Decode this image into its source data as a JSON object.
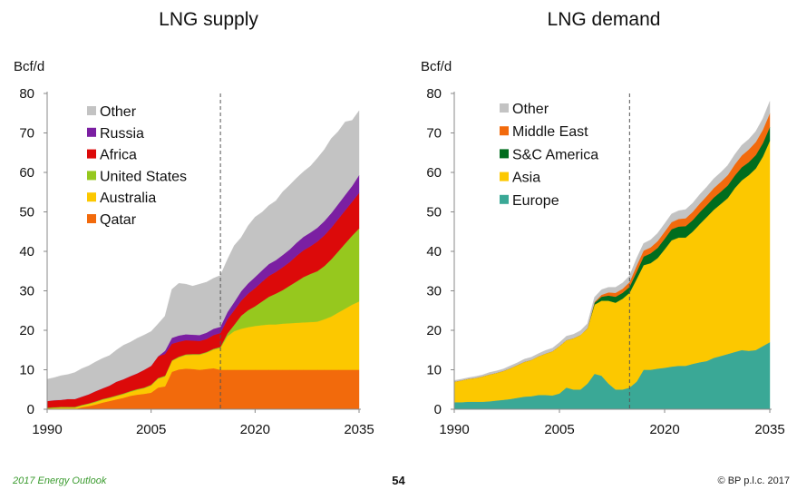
{
  "footer": {
    "left": "2017 Energy Outlook",
    "page_number": "54",
    "right": "© BP p.l.c. 2017"
  },
  "chart_data": [
    {
      "type": "area",
      "title": "LNG supply",
      "ylabel": "Bcf/d",
      "xlabel": "",
      "ylim": [
        0,
        80
      ],
      "yticks": [
        0,
        10,
        20,
        30,
        40,
        50,
        60,
        70,
        80
      ],
      "xticks": [
        "1990",
        "2005",
        "2020",
        "2035"
      ],
      "xlim": [
        1990,
        2035
      ],
      "divider_year": 2015,
      "legend_position": "top-left",
      "legend_order": [
        "Other",
        "Russia",
        "Africa",
        "United States",
        "Australia",
        "Qatar"
      ],
      "x": [
        1990,
        1991,
        1992,
        1993,
        1994,
        1995,
        1996,
        1997,
        1998,
        1999,
        2000,
        2001,
        2002,
        2003,
        2004,
        2005,
        2006,
        2007,
        2008,
        2009,
        2010,
        2011,
        2012,
        2013,
        2014,
        2015,
        2016,
        2017,
        2018,
        2019,
        2020,
        2021,
        2022,
        2023,
        2024,
        2025,
        2026,
        2027,
        2028,
        2029,
        2030,
        2031,
        2032,
        2033,
        2034,
        2035
      ],
      "series": [
        {
          "name": "Qatar",
          "color": "#f26a0c",
          "values": [
            0,
            0,
            0,
            0,
            0,
            0.5,
            0.8,
            1.2,
            1.7,
            2.1,
            2.5,
            2.9,
            3.4,
            3.7,
            3.9,
            4.2,
            5.5,
            5.8,
            9.5,
            10.1,
            10.3,
            10.2,
            10.0,
            10.2,
            10.4,
            10.0,
            10,
            10,
            10,
            10,
            10,
            10,
            10,
            10,
            10,
            10,
            10,
            10,
            10,
            10,
            10,
            10,
            10,
            10,
            10,
            10
          ]
        },
        {
          "name": "Australia",
          "color": "#fcc800",
          "values": [
            0.2,
            0.3,
            0.4,
            0.4,
            0.4,
            0.4,
            0.5,
            0.6,
            0.7,
            0.7,
            0.8,
            0.9,
            1.0,
            1.2,
            1.4,
            1.8,
            2.2,
            2.5,
            2.7,
            3.0,
            3.4,
            3.6,
            3.8,
            4.1,
            4.7,
            5.5,
            8.5,
            9.8,
            10.4,
            10.8,
            11.1,
            11.3,
            11.5,
            11.5,
            11.7,
            11.8,
            11.9,
            12.0,
            12.1,
            12.2,
            12.8,
            13.5,
            14.5,
            15.5,
            16.5,
            17.3
          ]
        },
        {
          "name": "United States",
          "color": "#96c81e",
          "values": [
            0.2,
            0.2,
            0.2,
            0.2,
            0.2,
            0.2,
            0.2,
            0.2,
            0.2,
            0.2,
            0.2,
            0.2,
            0.2,
            0.2,
            0.2,
            0.2,
            0.2,
            0.2,
            0.2,
            0.2,
            0.2,
            0.2,
            0.2,
            0.2,
            0.2,
            0.3,
            0.7,
            1.6,
            3.3,
            4.3,
            5.0,
            6.0,
            7.0,
            7.8,
            8.5,
            9.5,
            10.5,
            11.5,
            12.2,
            12.8,
            13.5,
            14.5,
            15.5,
            16.5,
            17.5,
            18.5
          ]
        },
        {
          "name": "Africa",
          "color": "#dc0a0a",
          "values": [
            1.7,
            1.8,
            1.8,
            2.0,
            2.0,
            2.1,
            2.3,
            2.6,
            2.7,
            3.0,
            3.5,
            3.6,
            3.8,
            4.0,
            4.5,
            4.8,
            5.5,
            5.5,
            4.2,
            3.8,
            3.6,
            3.4,
            3.3,
            3.3,
            3.5,
            3.5,
            3.6,
            3.7,
            3.8,
            4.2,
            4.6,
            5.0,
            5.3,
            5.5,
            5.8,
            6.0,
            6.5,
            6.8,
            7.0,
            7.5,
            7.8,
            8.0,
            8.2,
            8.4,
            8.6,
            9.0
          ]
        },
        {
          "name": "Russia",
          "color": "#7b1fa2",
          "values": [
            0,
            0,
            0,
            0,
            0,
            0,
            0,
            0,
            0,
            0,
            0,
            0,
            0,
            0,
            0,
            0,
            0,
            0.8,
            1.5,
            1.6,
            1.5,
            1.5,
            1.5,
            1.6,
            1.6,
            1.6,
            1.8,
            2.1,
            2.4,
            2.6,
            2.8,
            2.9,
            3.0,
            3.0,
            3.1,
            3.2,
            3.3,
            3.4,
            3.5,
            3.5,
            3.6,
            3.7,
            3.8,
            3.9,
            4.0,
            4.5
          ]
        },
        {
          "name": "Other",
          "color": "#c3c3c3",
          "values": [
            5.5,
            5.7,
            6.1,
            6.2,
            6.7,
            7.1,
            7.2,
            7.4,
            7.6,
            7.6,
            8.0,
            8.6,
            8.6,
            8.9,
            8.8,
            8.7,
            8.2,
            8.8,
            12.3,
            13.2,
            12.7,
            12.3,
            12.9,
            12.8,
            12.8,
            13.0,
            13.3,
            14.3,
            13.6,
            14.6,
            15.2,
            14.7,
            14.8,
            15.0,
            16.0,
            16.3,
            16.4,
            16.5,
            16.8,
            17.6,
            18.1,
            18.9,
            18.4,
            18.5,
            16.6,
            16.3
          ]
        }
      ]
    },
    {
      "type": "area",
      "title": "LNG demand",
      "ylabel": "Bcf/d",
      "xlabel": "",
      "ylim": [
        0,
        80
      ],
      "yticks": [
        0,
        10,
        20,
        30,
        40,
        50,
        60,
        70,
        80
      ],
      "xticks": [
        "1990",
        "2005",
        "2020",
        "2035"
      ],
      "xlim": [
        1990,
        2035
      ],
      "divider_year": 2015,
      "legend_position": "top-left",
      "legend_order": [
        "Other",
        "Middle East",
        "S&C America",
        "Asia",
        "Europe"
      ],
      "x": [
        1990,
        1991,
        1992,
        1993,
        1994,
        1995,
        1996,
        1997,
        1998,
        1999,
        2000,
        2001,
        2002,
        2003,
        2004,
        2005,
        2006,
        2007,
        2008,
        2009,
        2010,
        2011,
        2012,
        2013,
        2014,
        2015,
        2016,
        2017,
        2018,
        2019,
        2020,
        2021,
        2022,
        2023,
        2024,
        2025,
        2026,
        2027,
        2028,
        2029,
        2030,
        2031,
        2032,
        2033,
        2034,
        2035
      ],
      "series": [
        {
          "name": "Europe",
          "color": "#3aa896",
          "values": [
            1.8,
            1.8,
            1.9,
            1.9,
            1.9,
            2.0,
            2.2,
            2.4,
            2.6,
            2.9,
            3.2,
            3.3,
            3.6,
            3.6,
            3.5,
            4.0,
            5.5,
            5.0,
            5.0,
            6.5,
            9.0,
            8.5,
            6.5,
            5.0,
            5.0,
            5.5,
            7.0,
            10.0,
            10.0,
            10.3,
            10.5,
            10.8,
            11.0,
            11.0,
            11.5,
            11.9,
            12.2,
            13.0,
            13.5,
            14.0,
            14.5,
            15.0,
            14.8,
            15.0,
            16.0,
            17.0
          ]
        },
        {
          "name": "Asia",
          "color": "#fcc800",
          "values": [
            5.2,
            5.5,
            5.8,
            6.0,
            6.4,
            6.8,
            7.0,
            7.3,
            7.8,
            8.3,
            8.8,
            9.2,
            9.8,
            10.5,
            11.2,
            12.0,
            12.0,
            13.0,
            13.8,
            14.0,
            17.5,
            19.0,
            21.0,
            22.0,
            23.0,
            24.0,
            26.0,
            26.5,
            27.0,
            28.0,
            30.0,
            32.0,
            32.5,
            32.5,
            33.5,
            35.0,
            36.5,
            37.5,
            38.5,
            39.5,
            41.5,
            43.0,
            44.5,
            46.0,
            48.0,
            51.0
          ]
        },
        {
          "name": "S&C America",
          "color": "#006d1e",
          "values": [
            0,
            0,
            0,
            0,
            0,
            0,
            0,
            0,
            0,
            0,
            0,
            0,
            0,
            0,
            0,
            0,
            0,
            0,
            0,
            0,
            0.5,
            1.0,
            1.3,
            1.5,
            1.5,
            1.5,
            1.8,
            2.2,
            2.5,
            2.6,
            2.7,
            2.8,
            2.8,
            2.9,
            2.9,
            3.0,
            3.0,
            3.1,
            3.1,
            3.2,
            3.2,
            3.3,
            3.3,
            3.4,
            3.4,
            3.5
          ]
        },
        {
          "name": "Middle East",
          "color": "#f26a0c",
          "values": [
            0,
            0,
            0,
            0,
            0,
            0,
            0,
            0,
            0,
            0,
            0,
            0,
            0,
            0,
            0,
            0,
            0,
            0,
            0,
            0,
            0.2,
            0.5,
            0.8,
            1.0,
            1.0,
            1.2,
            1.6,
            1.5,
            1.5,
            1.7,
            1.8,
            1.8,
            1.9,
            2.0,
            2.1,
            2.2,
            2.3,
            2.4,
            2.5,
            2.6,
            2.8,
            3.0,
            3.2,
            3.3,
            3.4,
            3.5
          ]
        },
        {
          "name": "Other",
          "color": "#c3c3c3",
          "values": [
            0.3,
            0.3,
            0.3,
            0.4,
            0.4,
            0.5,
            0.5,
            0.5,
            0.6,
            0.6,
            0.7,
            0.7,
            0.7,
            0.8,
            0.8,
            0.9,
            1.0,
            1.0,
            1.1,
            1.2,
            1.2,
            1.3,
            1.3,
            1.4,
            1.5,
            1.6,
            1.8,
            1.8,
            1.9,
            2.0,
            2.0,
            2.1,
            2.1,
            2.2,
            2.2,
            2.3,
            2.3,
            2.4,
            2.4,
            2.5,
            2.5,
            2.6,
            2.6,
            2.7,
            2.8,
            3.0
          ]
        }
      ]
    }
  ]
}
